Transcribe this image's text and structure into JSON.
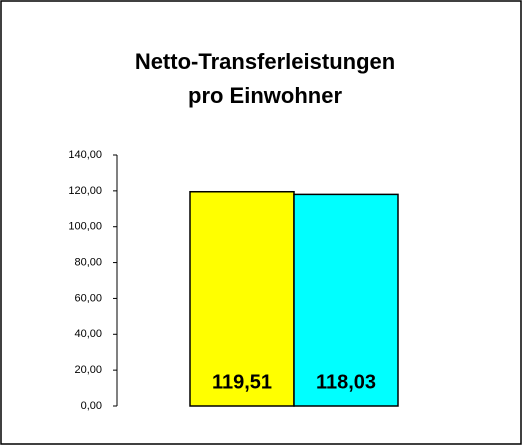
{
  "chart_data": {
    "type": "bar",
    "title": [
      "Netto-Transferleistungen",
      "pro Einwohner"
    ],
    "categories": [
      null,
      null
    ],
    "values": [
      119.51,
      118.03
    ],
    "value_labels": [
      "119,51",
      "118,03"
    ],
    "colors": [
      "#ffff00",
      "#00ffff"
    ],
    "ylim": [
      0,
      140
    ],
    "yticks": [
      {
        "value": 0,
        "label": "0,00"
      },
      {
        "value": 20,
        "label": "20,00"
      },
      {
        "value": 40,
        "label": "40,00"
      },
      {
        "value": 60,
        "label": "60,00"
      },
      {
        "value": 80,
        "label": "80,00"
      },
      {
        "value": 100,
        "label": "100,00"
      },
      {
        "value": 120,
        "label": "120,00"
      },
      {
        "value": 140,
        "label": "140,00"
      }
    ],
    "grid": false
  }
}
